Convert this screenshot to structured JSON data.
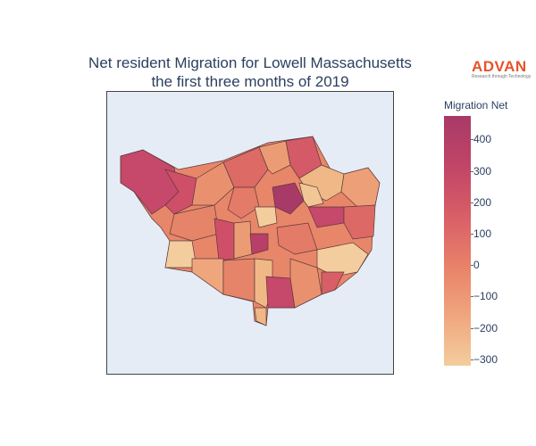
{
  "title": {
    "line1": "Net resident Migration for Lowell Massachusetts",
    "line2": "the first three months of 2019"
  },
  "logo": {
    "name": "ADVAN",
    "tagline": "Research through Technology",
    "color": "#e8532a"
  },
  "colorbar": {
    "title": "Migration Net",
    "ticks": [
      "400",
      "300",
      "200",
      "100",
      "0",
      "−100",
      "−200",
      "−300"
    ],
    "min": -330,
    "max": 470,
    "colorscale": [
      "#f3cd9d",
      "#f0a67d",
      "#e88169",
      "#d85e67",
      "#c04567",
      "#a83a67"
    ]
  },
  "map": {
    "background": "#e5ecf6"
  }
}
